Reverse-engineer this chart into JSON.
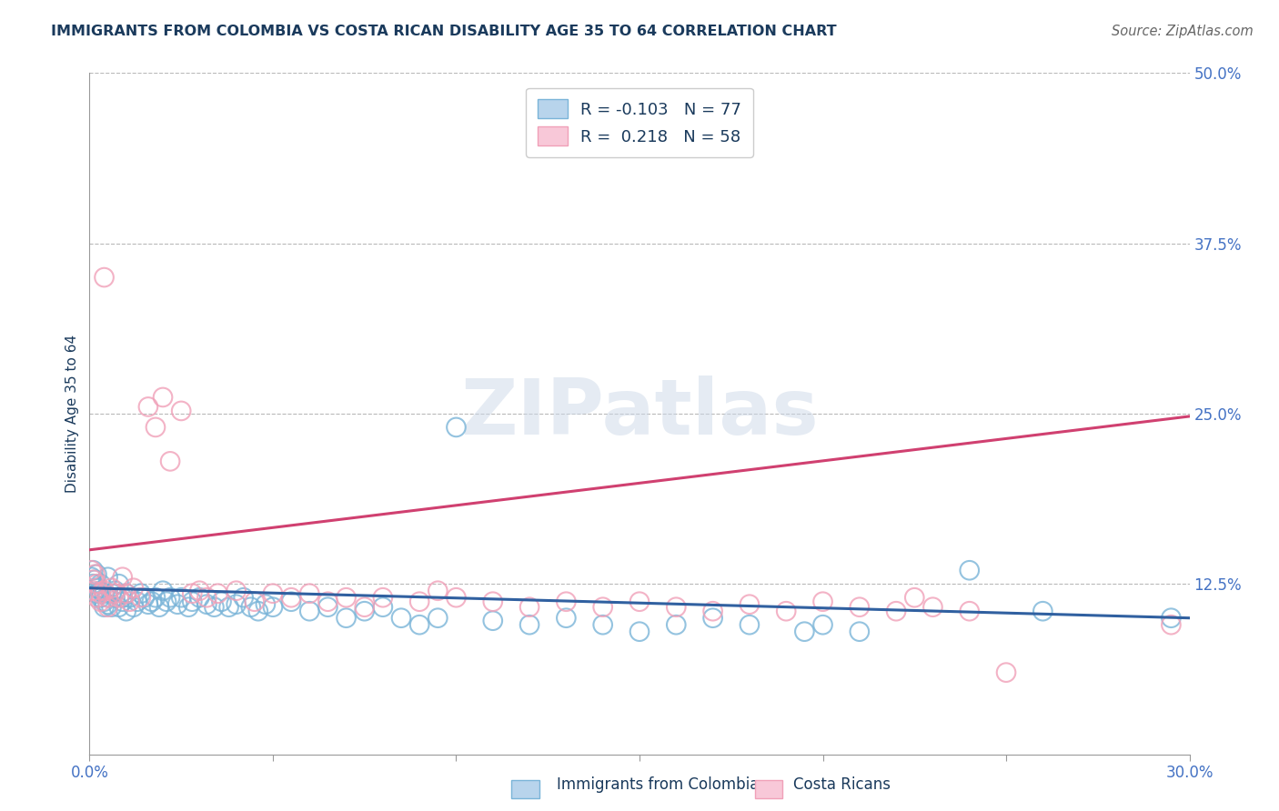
{
  "title": "IMMIGRANTS FROM COLOMBIA VS COSTA RICAN DISABILITY AGE 35 TO 64 CORRELATION CHART",
  "source_text": "Source: ZipAtlas.com",
  "ylabel": "Disability Age 35 to 64",
  "xlim": [
    0.0,
    0.3
  ],
  "ylim": [
    0.0,
    0.5
  ],
  "xticks": [
    0.0,
    0.05,
    0.1,
    0.15,
    0.2,
    0.25,
    0.3
  ],
  "xticklabels": [
    "0.0%",
    "",
    "",
    "",
    "",
    "",
    "30.0%"
  ],
  "yticks": [
    0.0,
    0.125,
    0.25,
    0.375,
    0.5
  ],
  "yticklabels": [
    "",
    "12.5%",
    "25.0%",
    "37.5%",
    "50.0%"
  ],
  "bottom_legend1": "Immigrants from Colombia",
  "bottom_legend2": "Costa Ricans",
  "blue_color": "#7ab4d8",
  "pink_color": "#f0a0b8",
  "blue_line_color": "#3060a0",
  "pink_line_color": "#d04070",
  "watermark": "ZIPatlas",
  "title_color": "#1a3a5c",
  "tick_label_color": "#4472c4",
  "grid_color": "#b8b8b8",
  "blue_line_x": [
    0.0,
    0.3
  ],
  "blue_line_y": [
    0.122,
    0.1
  ],
  "pink_line_x": [
    0.0,
    0.3
  ],
  "pink_line_y": [
    0.15,
    0.248
  ],
  "blue_scatter_x": [
    0.0005,
    0.001,
    0.001,
    0.0015,
    0.002,
    0.002,
    0.002,
    0.003,
    0.003,
    0.003,
    0.004,
    0.004,
    0.004,
    0.005,
    0.005,
    0.005,
    0.006,
    0.006,
    0.007,
    0.007,
    0.008,
    0.008,
    0.009,
    0.009,
    0.01,
    0.01,
    0.011,
    0.012,
    0.013,
    0.014,
    0.015,
    0.016,
    0.017,
    0.018,
    0.019,
    0.02,
    0.021,
    0.022,
    0.024,
    0.025,
    0.027,
    0.028,
    0.03,
    0.032,
    0.034,
    0.036,
    0.038,
    0.04,
    0.042,
    0.044,
    0.046,
    0.048,
    0.05,
    0.055,
    0.06,
    0.065,
    0.07,
    0.075,
    0.08,
    0.085,
    0.09,
    0.095,
    0.1,
    0.11,
    0.12,
    0.13,
    0.14,
    0.15,
    0.16,
    0.17,
    0.18,
    0.195,
    0.2,
    0.21,
    0.24,
    0.26,
    0.295
  ],
  "blue_scatter_y": [
    0.13,
    0.135,
    0.125,
    0.128,
    0.132,
    0.118,
    0.122,
    0.115,
    0.125,
    0.12,
    0.112,
    0.118,
    0.108,
    0.13,
    0.115,
    0.11,
    0.118,
    0.108,
    0.12,
    0.115,
    0.125,
    0.108,
    0.115,
    0.112,
    0.118,
    0.105,
    0.115,
    0.108,
    0.112,
    0.118,
    0.115,
    0.11,
    0.112,
    0.115,
    0.108,
    0.12,
    0.112,
    0.115,
    0.11,
    0.115,
    0.108,
    0.112,
    0.115,
    0.11,
    0.108,
    0.112,
    0.108,
    0.11,
    0.115,
    0.108,
    0.105,
    0.11,
    0.108,
    0.112,
    0.105,
    0.108,
    0.1,
    0.105,
    0.108,
    0.1,
    0.095,
    0.1,
    0.24,
    0.098,
    0.095,
    0.1,
    0.095,
    0.09,
    0.095,
    0.1,
    0.095,
    0.09,
    0.095,
    0.09,
    0.135,
    0.105,
    0.1
  ],
  "pink_scatter_x": [
    0.0005,
    0.001,
    0.001,
    0.0015,
    0.002,
    0.002,
    0.003,
    0.003,
    0.004,
    0.004,
    0.005,
    0.005,
    0.006,
    0.007,
    0.008,
    0.009,
    0.01,
    0.011,
    0.012,
    0.014,
    0.016,
    0.018,
    0.02,
    0.022,
    0.025,
    0.028,
    0.03,
    0.032,
    0.035,
    0.04,
    0.045,
    0.05,
    0.055,
    0.06,
    0.065,
    0.07,
    0.075,
    0.08,
    0.09,
    0.095,
    0.1,
    0.11,
    0.12,
    0.13,
    0.14,
    0.15,
    0.16,
    0.17,
    0.18,
    0.19,
    0.2,
    0.21,
    0.22,
    0.225,
    0.23,
    0.24,
    0.25,
    0.295
  ],
  "pink_scatter_y": [
    0.135,
    0.128,
    0.12,
    0.132,
    0.125,
    0.115,
    0.118,
    0.112,
    0.12,
    0.35,
    0.115,
    0.108,
    0.122,
    0.118,
    0.115,
    0.13,
    0.118,
    0.112,
    0.122,
    0.115,
    0.255,
    0.24,
    0.262,
    0.215,
    0.252,
    0.118,
    0.12,
    0.115,
    0.118,
    0.12,
    0.112,
    0.118,
    0.115,
    0.118,
    0.112,
    0.115,
    0.108,
    0.115,
    0.112,
    0.12,
    0.115,
    0.112,
    0.108,
    0.112,
    0.108,
    0.112,
    0.108,
    0.105,
    0.11,
    0.105,
    0.112,
    0.108,
    0.105,
    0.115,
    0.108,
    0.105,
    0.06,
    0.095
  ]
}
